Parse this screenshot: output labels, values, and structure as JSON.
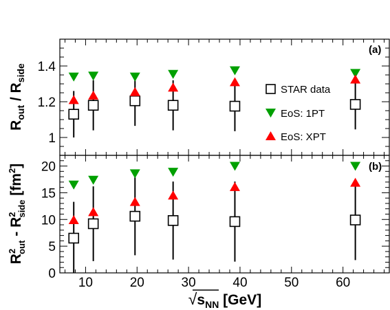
{
  "chart_data": [
    {
      "type": "scatter",
      "panel_label": "(a)",
      "ylabel": {
        "main": "R",
        "sub1": "out",
        "mid": " / R",
        "sub2": "side"
      },
      "xlim": [
        5,
        69
      ],
      "ylim": [
        0.9,
        1.55
      ],
      "yticks": [
        1,
        1.2,
        1.4
      ],
      "ytick_labels": [
        "1",
        "1.2",
        "1.4"
      ],
      "series": [
        {
          "name": "STAR data",
          "marker": "open-square",
          "color": "#000000",
          "x": [
            7.7,
            11.5,
            19.6,
            27,
            39,
            62.4
          ],
          "y": [
            1.13,
            1.18,
            1.205,
            1.18,
            1.175,
            1.185
          ],
          "err": [
            0.13,
            0.14,
            0.14,
            0.14,
            0.14,
            0.14
          ]
        },
        {
          "name": "EoS: 1PT",
          "marker": "triangle-down",
          "color": "#00a000",
          "x": [
            7.7,
            11.5,
            19.6,
            27,
            39,
            62.4
          ],
          "y": [
            1.34,
            1.345,
            1.34,
            1.355,
            1.375,
            1.36
          ]
        },
        {
          "name": "EoS: XPT",
          "marker": "triangle-up",
          "color": "#ff0000",
          "x": [
            7.7,
            11.5,
            19.6,
            27,
            39,
            62.4
          ],
          "y": [
            1.21,
            1.235,
            1.255,
            1.28,
            1.31,
            1.325
          ]
        }
      ]
    },
    {
      "type": "scatter",
      "panel_label": "(b)",
      "ylabel": {
        "main1": "R",
        "sup1": "2",
        "sub1": "out",
        "mid": " - R",
        "sup2": "2",
        "sub2": "side",
        "unit_pre": " [fm",
        "unit_sup": "2",
        "unit_post": "]"
      },
      "xlabel": {
        "root": "√",
        "base": "s",
        "sub": "NN",
        "unit": " [GeV]"
      },
      "xlim": [
        5,
        69
      ],
      "ylim": [
        0,
        22
      ],
      "yticks": [
        0,
        5,
        10,
        15,
        20
      ],
      "ytick_labels": [
        "0",
        "5",
        "10",
        "15",
        "20"
      ],
      "xticks": [
        10,
        20,
        30,
        40,
        50,
        60
      ],
      "xtick_labels": [
        "10",
        "20",
        "30",
        "40",
        "50",
        "60"
      ],
      "series": [
        {
          "name": "STAR data",
          "marker": "open-square",
          "color": "#000000",
          "x": [
            7.7,
            11.5,
            19.6,
            27,
            39,
            62.4
          ],
          "y": [
            6.5,
            9.2,
            10.6,
            9.8,
            9.6,
            9.9
          ],
          "err": [
            6.8,
            7.0,
            7.3,
            7.3,
            7.5,
            7.5
          ]
        },
        {
          "name": "EoS: 1PT",
          "marker": "triangle-down",
          "color": "#00a000",
          "x": [
            7.7,
            11.5,
            19.6,
            27,
            39,
            62.4
          ],
          "y": [
            16.5,
            17.4,
            18.6,
            18.9,
            20.0,
            20.0
          ]
        },
        {
          "name": "EoS: XPT",
          "marker": "triangle-up",
          "color": "#ff0000",
          "x": [
            7.7,
            11.5,
            19.6,
            27,
            39,
            62.4
          ],
          "y": [
            9.9,
            11.4,
            13.3,
            14.5,
            16.1,
            16.9
          ]
        }
      ]
    }
  ],
  "legend": {
    "placement": "right, panel (a)",
    "items": [
      {
        "label": "STAR data",
        "marker": "open-square",
        "color": "#000000"
      },
      {
        "label": "EoS: 1PT",
        "marker": "triangle-down",
        "color": "#00a000"
      },
      {
        "label": "EoS: XPT",
        "marker": "triangle-up",
        "color": "#ff0000"
      }
    ]
  }
}
